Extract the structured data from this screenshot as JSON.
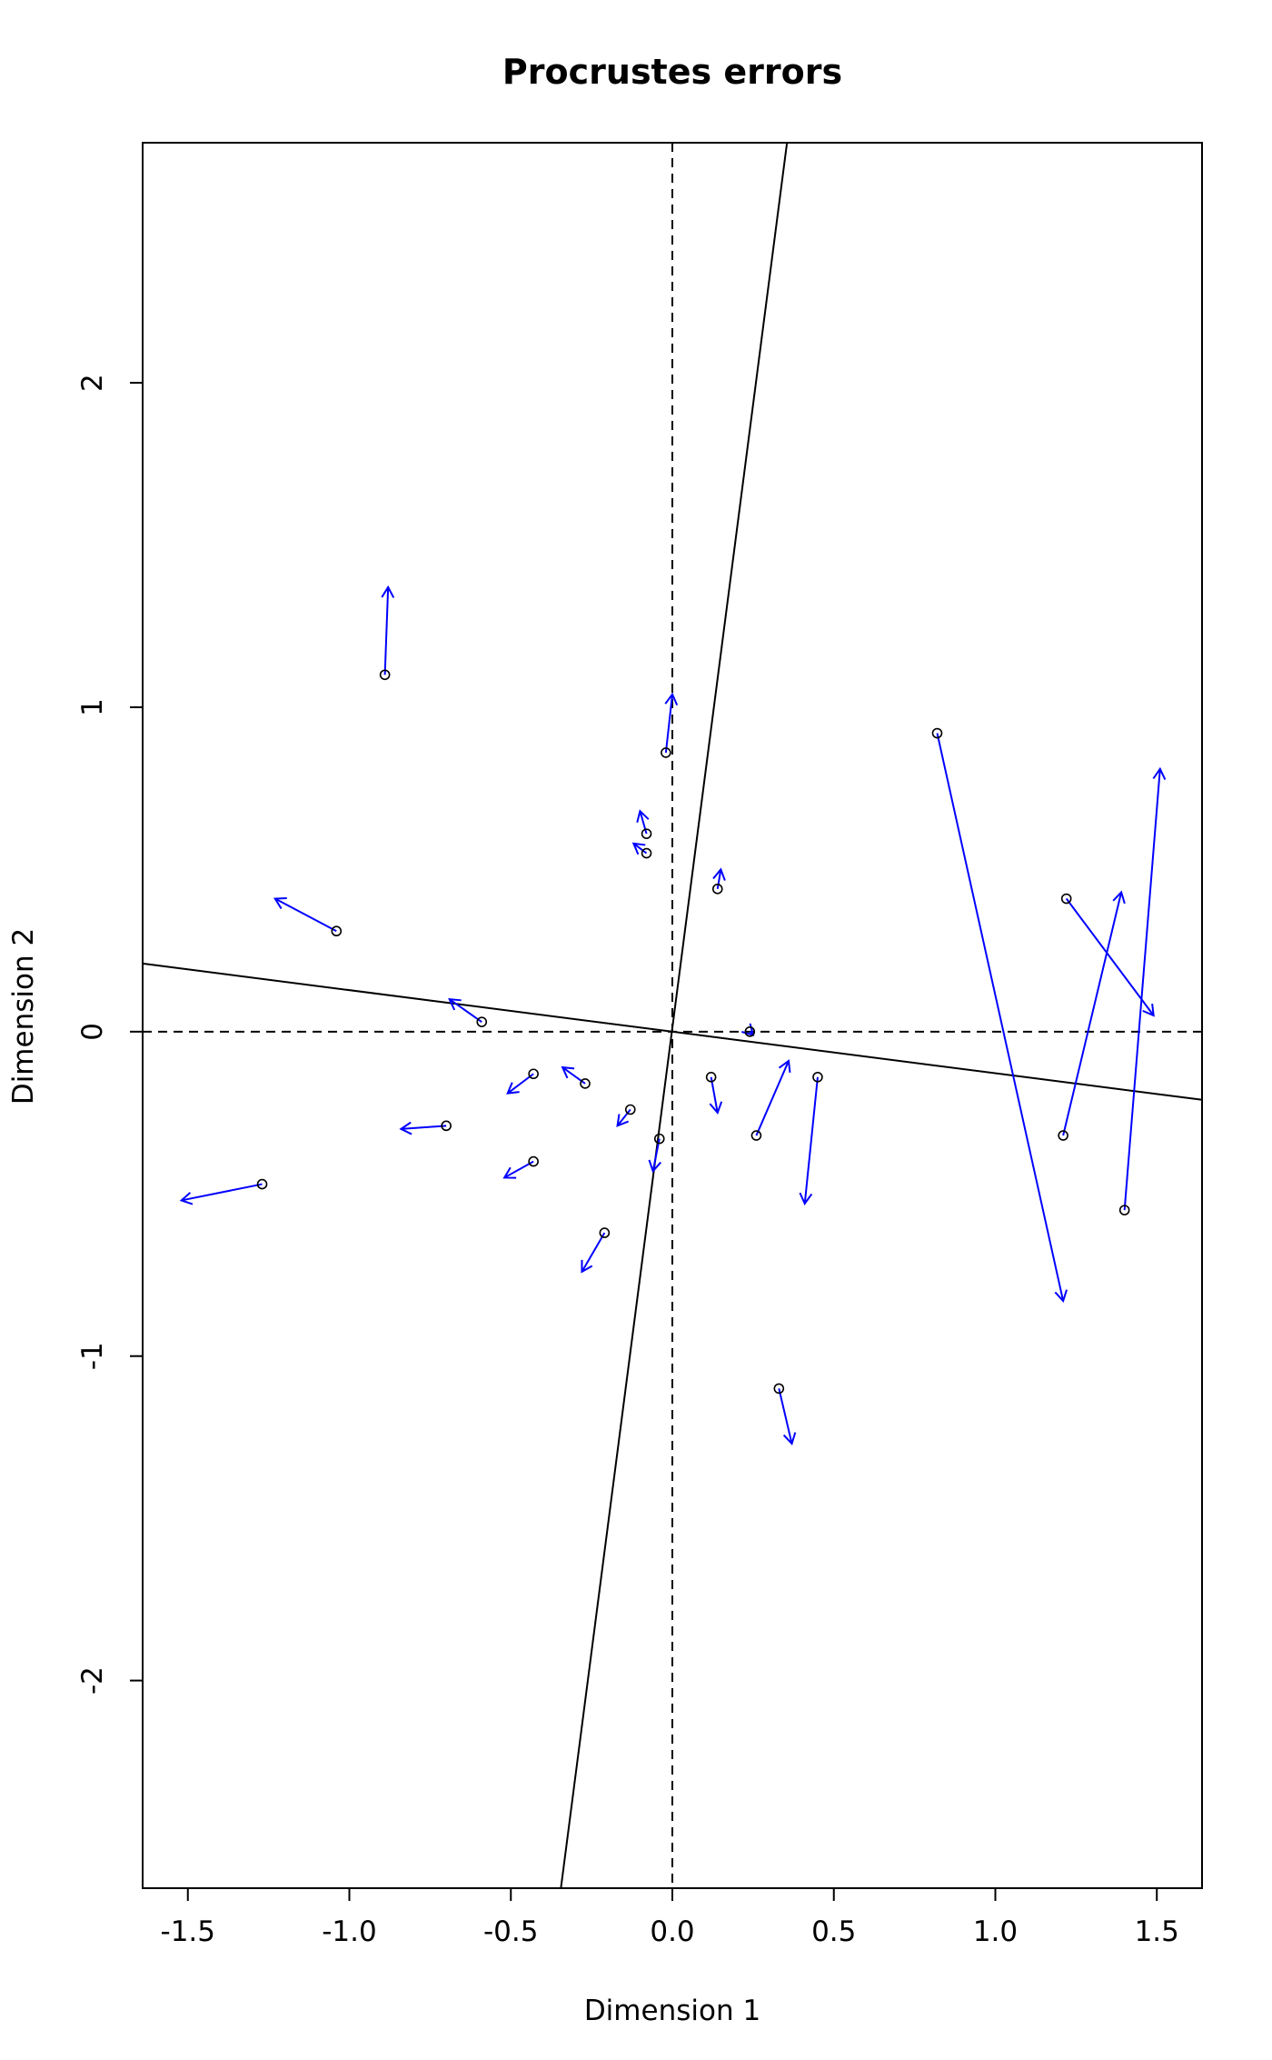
{
  "chart_data": {
    "type": "scatter",
    "title": "Procrustes errors",
    "xlabel": "Dimension 1",
    "ylabel": "Dimension 2",
    "xlim": [
      -1.64,
      1.64
    ],
    "ylim": [
      -2.64,
      2.74
    ],
    "xticks": [
      -1.5,
      -1.0,
      -0.5,
      0.0,
      0.5,
      1.0,
      1.5
    ],
    "yticks": [
      -2,
      -1,
      0,
      1,
      2
    ],
    "xtick_labels": [
      "-1.5",
      "-1.0",
      "-0.5",
      "0.0",
      "0.5",
      "1.0",
      "1.5"
    ],
    "ytick_labels": [
      "-2",
      "-1",
      "0",
      "1",
      "2"
    ],
    "reference_lines": {
      "vertical_dashed": 0,
      "horizontal_dashed": 0
    },
    "rotation_axes": [
      {
        "from": [
          -1.64,
          0.21
        ],
        "to": [
          1.64,
          -0.21
        ]
      },
      {
        "from": [
          -0.345,
          -2.64
        ],
        "to": [
          0.355,
          2.74
        ]
      }
    ],
    "colors": {
      "arrow": "#0000ff",
      "point": "#000000",
      "axes": "#000000"
    },
    "errors": [
      {
        "x": -0.89,
        "y": 1.1,
        "x_end": -0.88,
        "y_end": 1.37
      },
      {
        "x": -0.02,
        "y": 0.86,
        "x_end": 0.0,
        "y_end": 1.04
      },
      {
        "x": -0.08,
        "y": 0.61,
        "x_end": -0.1,
        "y_end": 0.68
      },
      {
        "x": -0.08,
        "y": 0.55,
        "x_end": -0.12,
        "y_end": 0.58
      },
      {
        "x": 0.14,
        "y": 0.44,
        "x_end": 0.15,
        "y_end": 0.5
      },
      {
        "x": -1.04,
        "y": 0.31,
        "x_end": -1.23,
        "y_end": 0.41
      },
      {
        "x": -0.59,
        "y": 0.03,
        "x_end": -0.69,
        "y_end": 0.1
      },
      {
        "x": 0.82,
        "y": 0.92,
        "x_end": 1.21,
        "y_end": -0.83
      },
      {
        "x": 1.22,
        "y": 0.41,
        "x_end": 1.49,
        "y_end": 0.05
      },
      {
        "x": 1.21,
        "y": -0.32,
        "x_end": 1.39,
        "y_end": 0.43
      },
      {
        "x": 1.4,
        "y": -0.55,
        "x_end": 1.51,
        "y_end": 0.81
      },
      {
        "x": 0.24,
        "y": 0.0,
        "x_end": 0.25,
        "y_end": -0.01
      },
      {
        "x": -0.43,
        "y": -0.13,
        "x_end": -0.51,
        "y_end": -0.19
      },
      {
        "x": -0.27,
        "y": -0.16,
        "x_end": -0.34,
        "y_end": -0.11
      },
      {
        "x": -0.7,
        "y": -0.29,
        "x_end": -0.84,
        "y_end": -0.3
      },
      {
        "x": -1.27,
        "y": -0.47,
        "x_end": -1.52,
        "y_end": -0.52
      },
      {
        "x": -0.43,
        "y": -0.4,
        "x_end": -0.52,
        "y_end": -0.45
      },
      {
        "x": -0.13,
        "y": -0.24,
        "x_end": -0.17,
        "y_end": -0.29
      },
      {
        "x": -0.04,
        "y": -0.33,
        "x_end": -0.06,
        "y_end": -0.43
      },
      {
        "x": 0.12,
        "y": -0.14,
        "x_end": 0.14,
        "y_end": -0.25
      },
      {
        "x": 0.26,
        "y": -0.32,
        "x_end": 0.36,
        "y_end": -0.09
      },
      {
        "x": 0.45,
        "y": -0.14,
        "x_end": 0.41,
        "y_end": -0.53
      },
      {
        "x": -0.21,
        "y": -0.62,
        "x_end": -0.28,
        "y_end": -0.74
      },
      {
        "x": 0.33,
        "y": -1.1,
        "x_end": 0.37,
        "y_end": -1.27
      }
    ]
  }
}
